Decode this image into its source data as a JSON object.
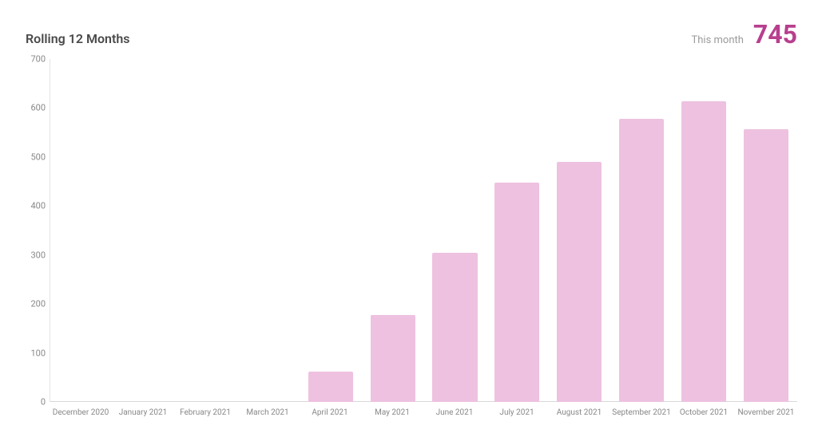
{
  "header": {
    "title": "Rolling 12 Months",
    "metric_label": "This month",
    "metric_value": "745",
    "metric_color": "#b83f8e"
  },
  "chart": {
    "type": "bar",
    "categories": [
      "December 2020",
      "January 2021",
      "February 2021",
      "March 2021",
      "April 2021",
      "May 2021",
      "June 2021",
      "July 2021",
      "August 2021",
      "September 2021",
      "October 2021",
      "November 2021"
    ],
    "values": [
      0,
      0,
      0,
      0,
      62,
      178,
      305,
      447,
      490,
      578,
      614,
      556
    ],
    "bar_color": "#eec1e0",
    "ylim": [
      0,
      700
    ],
    "ytick_step": 100,
    "yticks": [
      0,
      100,
      200,
      300,
      400,
      500,
      600,
      700
    ],
    "axis_color": "#e5e5e5",
    "baseline_color": "#d8d8d8",
    "tick_label_color": "#888888",
    "tick_fontsize": 11,
    "xlabel_fontsize": 10,
    "title_fontsize": 16,
    "title_color": "#4a4a4a",
    "background_color": "#ffffff",
    "bar_width": 0.72,
    "bar_border_radius": 2
  }
}
